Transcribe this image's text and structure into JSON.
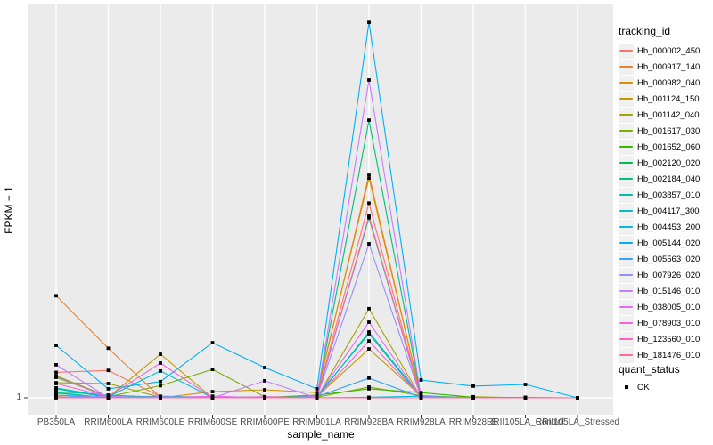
{
  "figure": {
    "background": "#FFFFFF",
    "panel_bg": "#EBEBEB",
    "grid_color": "#FFFFFF",
    "axis_text_color": "#4D4D4D",
    "tick_mark_color": "#333333",
    "marker_color": "#000000"
  },
  "legend": {
    "tracking_title": "tracking_id",
    "quant_title": "quant_status",
    "quant_entries": [
      {
        "label": "OK",
        "shape": "black-filled-square"
      }
    ]
  },
  "chart_data": {
    "type": "line",
    "title": "",
    "xlabel": "sample_name",
    "ylabel": "FPKM + 1",
    "y_scale": "log10",
    "y_tick_labels": [
      "1"
    ],
    "ylim_value": [
      1,
      1100
    ],
    "grid": "vertical white major gridlines on gray panel; single horizontal gridline at y=1",
    "legend_position": "right",
    "marker": "black filled square at every data point (quant_status = OK)",
    "categories": [
      "PB350LA",
      "RRIM600LA",
      "RRIM600LE",
      "RRIM600SE",
      "RRIM600PE",
      "RRIM901LA",
      "RRIM928BA",
      "RRIM928LA",
      "RRIM928LE",
      "RRII105LA_Control",
      "RRII105LA_Stressed"
    ],
    "series": [
      {
        "name": "Hb_000002_450",
        "color": "#F8766D",
        "values": [
          1.6,
          1.66,
          1.02,
          1.0,
          1.0,
          1.02,
          36.5,
          1.0,
          1.0,
          1.0,
          1.0
        ]
      },
      {
        "name": "Hb_000917_140",
        "color": "#EA8331",
        "values": [
          6.6,
          2.5,
          1.01,
          1.0,
          1.01,
          1.05,
          62,
          1.01,
          1.0,
          1.0,
          1.0
        ]
      },
      {
        "name": "Hb_000982_040",
        "color": "#D89000",
        "values": [
          1.02,
          1.0,
          1.0,
          1.12,
          1.16,
          1.1,
          58,
          1.02,
          1.01,
          1.0,
          1.0
        ]
      },
      {
        "name": "Hb_001124_150",
        "color": "#C09B00",
        "values": [
          1.05,
          1.01,
          2.24,
          1.0,
          1.01,
          1.02,
          2.47,
          1.03,
          1.0,
          1.01,
          1.0
        ]
      },
      {
        "name": "Hb_001142_040",
        "color": "#A3A500",
        "values": [
          1.32,
          1.3,
          1.01,
          1.02,
          1.0,
          1.0,
          5.2,
          1.0,
          1.02,
          1.0,
          1.0
        ]
      },
      {
        "name": "Hb_001617_030",
        "color": "#7CAE00",
        "values": [
          1.5,
          1.02,
          1.25,
          1.69,
          1.02,
          1.01,
          1.22,
          1.04,
          1.0,
          1.0,
          1.0
        ]
      },
      {
        "name": "Hb_001652_060",
        "color": "#39B600",
        "values": [
          1.46,
          1.02,
          1.0,
          1.01,
          1.0,
          1.05,
          1.18,
          1.1,
          1.01,
          1.0,
          1.0
        ]
      },
      {
        "name": "Hb_002120_020",
        "color": "#00BB4E",
        "values": [
          1.1,
          1.0,
          1.02,
          1.0,
          1.0,
          1.01,
          27.8,
          1.0,
          1.0,
          1.0,
          1.0
        ]
      },
      {
        "name": "Hb_002184_040",
        "color": "#00BF7D",
        "values": [
          1.18,
          1.01,
          1.0,
          1.02,
          1.01,
          1.02,
          169,
          1.01,
          1.0,
          1.0,
          1.0
        ]
      },
      {
        "name": "Hb_003857_010",
        "color": "#00C1A3",
        "values": [
          1.12,
          1.05,
          1.01,
          1.0,
          1.02,
          1.0,
          3.38,
          1.02,
          1.0,
          1.0,
          1.0
        ]
      },
      {
        "name": "Hb_004117_300",
        "color": "#00BFC4",
        "values": [
          1.09,
          1.0,
          1.03,
          1.01,
          1.0,
          1.03,
          3.27,
          1.0,
          1.01,
          1.0,
          1.0
        ]
      },
      {
        "name": "Hb_004453_200",
        "color": "#00BAE0",
        "values": [
          1.2,
          1.02,
          1.64,
          1.0,
          1.01,
          1.0,
          1.01,
          1.03,
          1.0,
          1.0,
          1.0
        ]
      },
      {
        "name": "Hb_005144_020",
        "color": "#00B0F6",
        "values": [
          2.64,
          1.18,
          1.35,
          2.77,
          1.75,
          1.18,
          1030,
          1.39,
          1.24,
          1.28,
          1.0
        ]
      },
      {
        "name": "Hb_005563_020",
        "color": "#35A2FF",
        "values": [
          1.05,
          1.0,
          1.01,
          1.02,
          1.0,
          1.02,
          1.44,
          1.01,
          1.0,
          1.0,
          1.0
        ]
      },
      {
        "name": "Hb_007926_020",
        "color": "#9590FF",
        "values": [
          1.01,
          1.03,
          1.0,
          1.01,
          1.0,
          1.01,
          17.2,
          1.0,
          1.0,
          1.0,
          1.0
        ]
      },
      {
        "name": "Hb_015146_010",
        "color": "#C77CFF",
        "values": [
          1.84,
          1.0,
          1.02,
          1.0,
          1.37,
          1.0,
          355,
          1.02,
          1.0,
          1.0,
          1.0
        ]
      },
      {
        "name": "Hb_038005_010",
        "color": "#E76BF3",
        "values": [
          1.48,
          1.01,
          1.0,
          1.03,
          1.0,
          1.02,
          4.05,
          1.0,
          1.0,
          1.0,
          1.0
        ]
      },
      {
        "name": "Hb_078903_010",
        "color": "#FA62DB",
        "values": [
          1.3,
          1.02,
          1.9,
          1.0,
          1.02,
          1.0,
          2.86,
          1.01,
          1.0,
          1.0,
          1.0
        ]
      },
      {
        "name": "Hb_123560_010",
        "color": "#FF62BC",
        "values": [
          1.01,
          1.0,
          1.0,
          1.01,
          1.0,
          1.0,
          28.7,
          1.0,
          1.0,
          1.0,
          1.0
        ]
      },
      {
        "name": "Hb_181476_010",
        "color": "#FF6A98",
        "values": [
          1.0,
          1.0,
          1.0,
          1.0,
          1.0,
          1.0,
          1.0,
          1.0,
          1.0,
          1.0,
          1.0
        ]
      }
    ]
  }
}
